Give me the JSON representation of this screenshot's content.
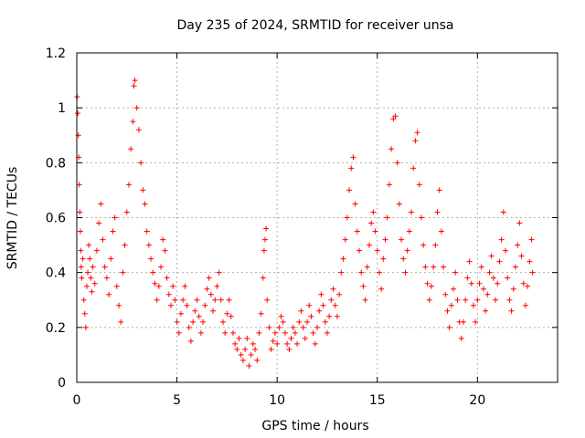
{
  "chart_data": {
    "type": "scatter",
    "title": "Day 235 of 2024, SRMTID for receiver unsa",
    "xlabel": "GPS time / hours",
    "ylabel": "SRMTID / TECUs",
    "xlim": [
      0,
      24
    ],
    "ylim": [
      0,
      1.2
    ],
    "xticks": [
      0,
      5,
      10,
      15,
      20
    ],
    "xtick_labels": [
      "0",
      "5",
      "10",
      "15",
      "20"
    ],
    "yticks": [
      0,
      0.2,
      0.4,
      0.6,
      0.8,
      1.0,
      1.2
    ],
    "ytick_labels": [
      "0",
      "0.2",
      "0.4",
      "0.6",
      "0.8",
      "1",
      "1.2"
    ],
    "grid": true,
    "marker": "+",
    "color": "#ff0000",
    "series": [
      {
        "name": "SRMTID",
        "points": [
          [
            0.02,
            1.04
          ],
          [
            0.05,
            0.98
          ],
          [
            0.08,
            0.9
          ],
          [
            0.1,
            0.82
          ],
          [
            0.12,
            0.72
          ],
          [
            0.15,
            0.62
          ],
          [
            0.18,
            0.55
          ],
          [
            0.2,
            0.48
          ],
          [
            0.22,
            0.42
          ],
          [
            0.25,
            0.38
          ],
          [
            0.3,
            0.45
          ],
          [
            0.35,
            0.3
          ],
          [
            0.4,
            0.25
          ],
          [
            0.45,
            0.2
          ],
          [
            0.5,
            0.35
          ],
          [
            0.55,
            0.4
          ],
          [
            0.6,
            0.5
          ],
          [
            0.65,
            0.45
          ],
          [
            0.7,
            0.38
          ],
          [
            0.75,
            0.33
          ],
          [
            0.8,
            0.42
          ],
          [
            0.9,
            0.36
          ],
          [
            1.0,
            0.48
          ],
          [
            1.1,
            0.58
          ],
          [
            1.2,
            0.65
          ],
          [
            1.3,
            0.52
          ],
          [
            1.4,
            0.42
          ],
          [
            1.5,
            0.38
          ],
          [
            1.6,
            0.32
          ],
          [
            1.7,
            0.45
          ],
          [
            1.8,
            0.55
          ],
          [
            1.9,
            0.6
          ],
          [
            2.0,
            0.35
          ],
          [
            2.1,
            0.28
          ],
          [
            2.2,
            0.22
          ],
          [
            2.3,
            0.4
          ],
          [
            2.4,
            0.5
          ],
          [
            2.5,
            0.62
          ],
          [
            2.6,
            0.72
          ],
          [
            2.7,
            0.85
          ],
          [
            2.8,
            0.95
          ],
          [
            2.85,
            1.08
          ],
          [
            2.9,
            1.1
          ],
          [
            3.0,
            1.0
          ],
          [
            3.1,
            0.92
          ],
          [
            3.2,
            0.8
          ],
          [
            3.3,
            0.7
          ],
          [
            3.4,
            0.65
          ],
          [
            3.5,
            0.55
          ],
          [
            3.6,
            0.5
          ],
          [
            3.7,
            0.45
          ],
          [
            3.8,
            0.4
          ],
          [
            3.9,
            0.36
          ],
          [
            4.0,
            0.3
          ],
          [
            4.1,
            0.35
          ],
          [
            4.2,
            0.42
          ],
          [
            4.3,
            0.52
          ],
          [
            4.4,
            0.48
          ],
          [
            4.5,
            0.38
          ],
          [
            4.6,
            0.32
          ],
          [
            4.7,
            0.28
          ],
          [
            4.8,
            0.35
          ],
          [
            4.9,
            0.3
          ],
          [
            5.0,
            0.22
          ],
          [
            5.1,
            0.18
          ],
          [
            5.2,
            0.25
          ],
          [
            5.3,
            0.3
          ],
          [
            5.4,
            0.35
          ],
          [
            5.5,
            0.28
          ],
          [
            5.6,
            0.2
          ],
          [
            5.7,
            0.15
          ],
          [
            5.8,
            0.22
          ],
          [
            5.9,
            0.26
          ],
          [
            6.0,
            0.3
          ],
          [
            6.1,
            0.24
          ],
          [
            6.2,
            0.18
          ],
          [
            6.3,
            0.22
          ],
          [
            6.4,
            0.28
          ],
          [
            6.5,
            0.34
          ],
          [
            6.6,
            0.38
          ],
          [
            6.7,
            0.32
          ],
          [
            6.8,
            0.26
          ],
          [
            6.9,
            0.3
          ],
          [
            7.0,
            0.35
          ],
          [
            7.1,
            0.4
          ],
          [
            7.2,
            0.3
          ],
          [
            7.3,
            0.22
          ],
          [
            7.4,
            0.18
          ],
          [
            7.5,
            0.25
          ],
          [
            7.6,
            0.3
          ],
          [
            7.7,
            0.24
          ],
          [
            7.8,
            0.18
          ],
          [
            7.9,
            0.14
          ],
          [
            8.0,
            0.12
          ],
          [
            8.1,
            0.16
          ],
          [
            8.2,
            0.1
          ],
          [
            8.3,
            0.08
          ],
          [
            8.4,
            0.12
          ],
          [
            8.5,
            0.16
          ],
          [
            8.6,
            0.06
          ],
          [
            8.7,
            0.1
          ],
          [
            8.8,
            0.14
          ],
          [
            8.9,
            0.12
          ],
          [
            9.0,
            0.08
          ],
          [
            9.1,
            0.18
          ],
          [
            9.2,
            0.25
          ],
          [
            9.3,
            0.38
          ],
          [
            9.35,
            0.48
          ],
          [
            9.4,
            0.52
          ],
          [
            9.45,
            0.56
          ],
          [
            9.5,
            0.3
          ],
          [
            9.6,
            0.2
          ],
          [
            9.7,
            0.12
          ],
          [
            9.8,
            0.15
          ],
          [
            9.9,
            0.18
          ],
          [
            10.0,
            0.14
          ],
          [
            10.1,
            0.2
          ],
          [
            10.2,
            0.24
          ],
          [
            10.3,
            0.22
          ],
          [
            10.4,
            0.18
          ],
          [
            10.5,
            0.14
          ],
          [
            10.6,
            0.12
          ],
          [
            10.7,
            0.16
          ],
          [
            10.8,
            0.2
          ],
          [
            10.9,
            0.18
          ],
          [
            11.0,
            0.14
          ],
          [
            11.1,
            0.22
          ],
          [
            11.2,
            0.26
          ],
          [
            11.3,
            0.2
          ],
          [
            11.4,
            0.16
          ],
          [
            11.5,
            0.22
          ],
          [
            11.6,
            0.28
          ],
          [
            11.7,
            0.24
          ],
          [
            11.8,
            0.18
          ],
          [
            11.9,
            0.14
          ],
          [
            12.0,
            0.2
          ],
          [
            12.1,
            0.26
          ],
          [
            12.2,
            0.32
          ],
          [
            12.3,
            0.28
          ],
          [
            12.4,
            0.22
          ],
          [
            12.5,
            0.18
          ],
          [
            12.6,
            0.24
          ],
          [
            12.7,
            0.3
          ],
          [
            12.8,
            0.34
          ],
          [
            12.9,
            0.28
          ],
          [
            13.0,
            0.24
          ],
          [
            13.1,
            0.32
          ],
          [
            13.2,
            0.4
          ],
          [
            13.3,
            0.45
          ],
          [
            13.4,
            0.52
          ],
          [
            13.5,
            0.6
          ],
          [
            13.6,
            0.7
          ],
          [
            13.7,
            0.78
          ],
          [
            13.8,
            0.82
          ],
          [
            13.9,
            0.65
          ],
          [
            14.0,
            0.55
          ],
          [
            14.1,
            0.48
          ],
          [
            14.2,
            0.4
          ],
          [
            14.3,
            0.35
          ],
          [
            14.4,
            0.3
          ],
          [
            14.5,
            0.42
          ],
          [
            14.6,
            0.5
          ],
          [
            14.7,
            0.58
          ],
          [
            14.8,
            0.62
          ],
          [
            14.9,
            0.55
          ],
          [
            15.0,
            0.48
          ],
          [
            15.1,
            0.4
          ],
          [
            15.2,
            0.34
          ],
          [
            15.3,
            0.45
          ],
          [
            15.4,
            0.52
          ],
          [
            15.5,
            0.6
          ],
          [
            15.6,
            0.72
          ],
          [
            15.7,
            0.85
          ],
          [
            15.8,
            0.96
          ],
          [
            15.9,
            0.97
          ],
          [
            16.0,
            0.8
          ],
          [
            16.1,
            0.65
          ],
          [
            16.2,
            0.52
          ],
          [
            16.3,
            0.45
          ],
          [
            16.4,
            0.4
          ],
          [
            16.5,
            0.48
          ],
          [
            16.6,
            0.55
          ],
          [
            16.7,
            0.62
          ],
          [
            16.8,
            0.78
          ],
          [
            16.9,
            0.88
          ],
          [
            17.0,
            0.91
          ],
          [
            17.1,
            0.72
          ],
          [
            17.2,
            0.6
          ],
          [
            17.3,
            0.5
          ],
          [
            17.4,
            0.42
          ],
          [
            17.5,
            0.36
          ],
          [
            17.6,
            0.3
          ],
          [
            17.7,
            0.35
          ],
          [
            17.8,
            0.42
          ],
          [
            17.9,
            0.5
          ],
          [
            18.0,
            0.62
          ],
          [
            18.1,
            0.7
          ],
          [
            18.2,
            0.55
          ],
          [
            18.3,
            0.42
          ],
          [
            18.4,
            0.32
          ],
          [
            18.5,
            0.26
          ],
          [
            18.6,
            0.2
          ],
          [
            18.7,
            0.28
          ],
          [
            18.8,
            0.34
          ],
          [
            18.9,
            0.4
          ],
          [
            19.0,
            0.3
          ],
          [
            19.1,
            0.22
          ],
          [
            19.2,
            0.16
          ],
          [
            19.3,
            0.22
          ],
          [
            19.4,
            0.3
          ],
          [
            19.5,
            0.38
          ],
          [
            19.6,
            0.44
          ],
          [
            19.7,
            0.36
          ],
          [
            19.8,
            0.28
          ],
          [
            19.9,
            0.22
          ],
          [
            20.0,
            0.3
          ],
          [
            20.1,
            0.36
          ],
          [
            20.2,
            0.42
          ],
          [
            20.3,
            0.34
          ],
          [
            20.4,
            0.26
          ],
          [
            20.5,
            0.32
          ],
          [
            20.6,
            0.4
          ],
          [
            20.7,
            0.46
          ],
          [
            20.8,
            0.38
          ],
          [
            20.9,
            0.3
          ],
          [
            21.0,
            0.36
          ],
          [
            21.1,
            0.44
          ],
          [
            21.2,
            0.52
          ],
          [
            21.3,
            0.62
          ],
          [
            21.4,
            0.48
          ],
          [
            21.5,
            0.38
          ],
          [
            21.6,
            0.3
          ],
          [
            21.7,
            0.26
          ],
          [
            21.8,
            0.34
          ],
          [
            21.9,
            0.42
          ],
          [
            22.0,
            0.5
          ],
          [
            22.1,
            0.58
          ],
          [
            22.2,
            0.46
          ],
          [
            22.3,
            0.36
          ],
          [
            22.4,
            0.28
          ],
          [
            22.5,
            0.35
          ],
          [
            22.6,
            0.44
          ],
          [
            22.7,
            0.52
          ],
          [
            22.75,
            0.4
          ]
        ]
      }
    ]
  }
}
